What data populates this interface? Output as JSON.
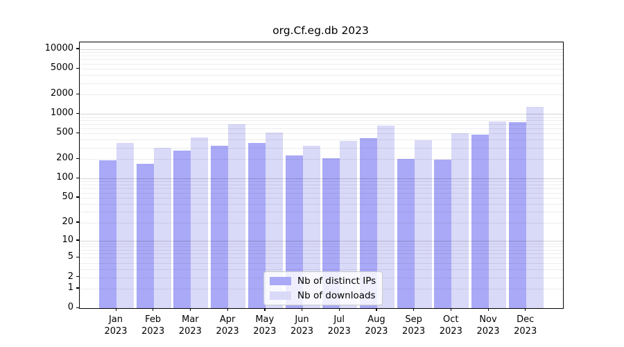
{
  "title": "org.Cf.eg.db 2023",
  "chart_data": {
    "type": "bar",
    "title": "org.Cf.eg.db 2023",
    "scale": "log10(1+y)",
    "grid": true,
    "legend_position": "bottom-center-inside",
    "year": "2023",
    "categories": [
      "Jan",
      "Feb",
      "Mar",
      "Apr",
      "May",
      "Jun",
      "Jul",
      "Aug",
      "Sep",
      "Oct",
      "Nov",
      "Dec"
    ],
    "series": [
      {
        "name": "Nb of distinct IPs",
        "color": "#a9a9f7",
        "values": [
          190,
          170,
          270,
          320,
          360,
          230,
          205,
          420,
          200,
          195,
          480,
          750
        ]
      },
      {
        "name": "Nb of downloads",
        "color": "#d9d9f8",
        "values": [
          355,
          300,
          435,
          690,
          515,
          320,
          385,
          660,
          390,
          500,
          760,
          1300
        ]
      }
    ],
    "y_ticks": [
      0,
      1,
      2,
      5,
      10,
      20,
      50,
      100,
      200,
      500,
      1000,
      2000,
      5000,
      10000
    ],
    "ylim": [
      0,
      12800
    ],
    "xlabel": "",
    "ylabel": ""
  }
}
